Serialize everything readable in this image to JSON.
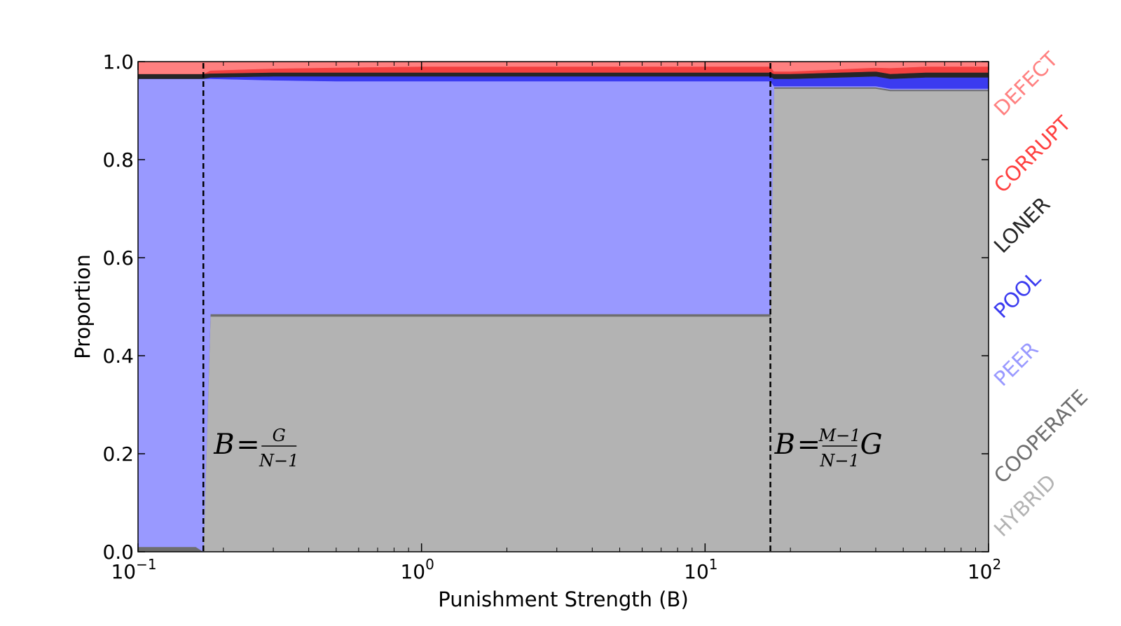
{
  "chart_data": {
    "type": "area",
    "stacked": true,
    "x_scale": "log",
    "xlim": [
      0.1,
      100
    ],
    "ylim": [
      0.0,
      1.0
    ],
    "xlabel": "Punishment Strength (B)",
    "ylabel": "Proportion",
    "x_ticks": [
      {
        "value": 0.1,
        "base": "10",
        "exp": "−1"
      },
      {
        "value": 1,
        "base": "10",
        "exp": "0"
      },
      {
        "value": 10,
        "base": "10",
        "exp": "1"
      },
      {
        "value": 100,
        "base": "10",
        "exp": "2"
      }
    ],
    "y_ticks": [
      "0.0",
      "0.2",
      "0.4",
      "0.6",
      "0.8",
      "1.0"
    ],
    "y_tick_values": [
      0.0,
      0.2,
      0.4,
      0.6,
      0.8,
      1.0
    ],
    "x": [
      0.1,
      0.16,
      0.17,
      0.18,
      0.3,
      0.5,
      1,
      5,
      16,
      17,
      17.5,
      20,
      40,
      45,
      60,
      100
    ],
    "series": [
      {
        "name": "HYBRID",
        "color": "#b3b3b3",
        "values": [
          0,
          0,
          0,
          0.48,
          0.48,
          0.48,
          0.48,
          0.48,
          0.48,
          0.48,
          0.945,
          0.945,
          0.945,
          0.94,
          0.94,
          0.94
        ]
      },
      {
        "name": "COOPERATE",
        "color": "#6e6e6e",
        "values": [
          0.01,
          0.01,
          0,
          0.005,
          0.005,
          0.005,
          0.005,
          0.005,
          0.005,
          0.005,
          0.003,
          0.003,
          0.003,
          0.003,
          0.003,
          0.003
        ]
      },
      {
        "name": "PEER",
        "color": "#9999ff",
        "values": [
          0.955,
          0.955,
          0.965,
          0.48,
          0.477,
          0.475,
          0.475,
          0.475,
          0.475,
          0.475,
          0.002,
          0.002,
          0.002,
          0.002,
          0.002,
          0.002
        ]
      },
      {
        "name": "POOL",
        "color": "#3b3bf0",
        "values": [
          0.0,
          0.0,
          0.0,
          0.003,
          0.008,
          0.01,
          0.01,
          0.01,
          0.01,
          0.01,
          0.015,
          0.015,
          0.02,
          0.02,
          0.023,
          0.023
        ]
      },
      {
        "name": "LONER",
        "color": "#262626",
        "values": [
          0.01,
          0.01,
          0.01,
          0.008,
          0.008,
          0.008,
          0.008,
          0.008,
          0.008,
          0.008,
          0.01,
          0.01,
          0.01,
          0.01,
          0.01,
          0.01
        ]
      },
      {
        "name": "CORRUPT",
        "color": "#f24040",
        "values": [
          0.0,
          0.0,
          0.0,
          0.006,
          0.008,
          0.01,
          0.012,
          0.012,
          0.012,
          0.012,
          0.005,
          0.005,
          0.008,
          0.012,
          0.012,
          0.012
        ]
      },
      {
        "name": "DEFECT",
        "color": "#ff8080",
        "values": [
          0.025,
          0.025,
          0.025,
          0.018,
          0.014,
          0.012,
          0.01,
          0.01,
          0.01,
          0.01,
          0.02,
          0.02,
          0.012,
          0.013,
          0.01,
          0.01
        ]
      }
    ],
    "legend": [
      "DEFECT",
      "CORRUPT",
      "LONER",
      "POOL",
      "PEER",
      "COOPERATE",
      "HYBRID"
    ],
    "legend_placement": "right",
    "legend_colors": [
      "#ff8080",
      "#ff4040",
      "#262626",
      "#3b3bf0",
      "#9999ff",
      "#6e6e6e",
      "#b3b3b3"
    ],
    "vlines": [
      0.17,
      17
    ],
    "annotations": [
      {
        "lhs": "B",
        "eq": "=",
        "num": "G",
        "den": "N−1",
        "suffix": ""
      },
      {
        "lhs": "B",
        "eq": "=",
        "num": "M−1",
        "den": "N−1",
        "suffix": "G"
      }
    ]
  }
}
